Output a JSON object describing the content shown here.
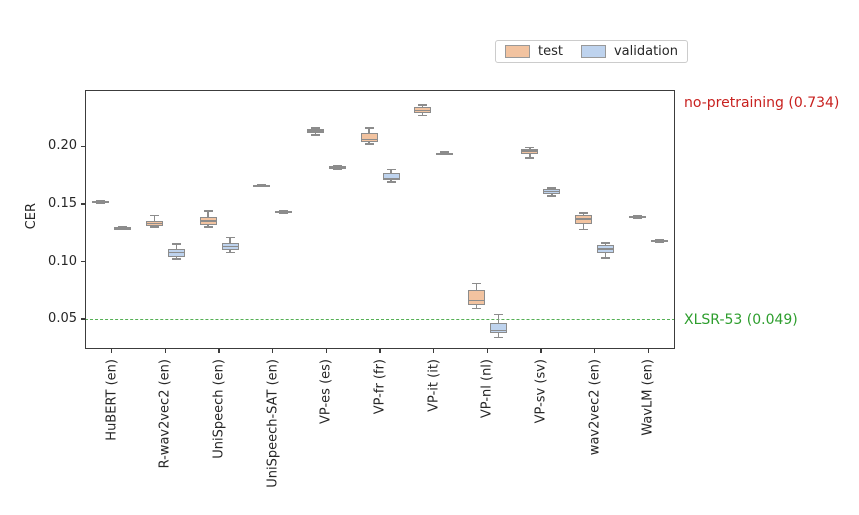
{
  "legend": {
    "items": [
      {
        "label": "test",
        "color": "#f2c3a0"
      },
      {
        "label": "validation",
        "color": "#bed3ee"
      }
    ]
  },
  "annotations": {
    "no_pretraining": {
      "text": "no-pretraining (0.734)",
      "value": 0.734,
      "color": "#c8211f"
    },
    "xlsr53": {
      "text": "XLSR-53 (0.049)",
      "value": 0.049,
      "color": "#2e9e2e"
    }
  },
  "chart_data": {
    "type": "boxplot",
    "title": "",
    "xlabel": "",
    "ylabel": "CER",
    "ylim": [
      0.024,
      0.249
    ],
    "yticks": [
      0.05,
      0.1,
      0.15,
      0.2
    ],
    "grid": false,
    "legend_position": "top-right-above-axes",
    "categories": [
      "HuBERT (en)",
      "R-wav2vec2 (en)",
      "UniSpeech (en)",
      "UniSpeech-SAT (en)",
      "VP-es (es)",
      "VP-fr (fr)",
      "VP-it (it)",
      "VP-nl (nl)",
      "VP-sv (sv)",
      "wav2vec2 (en)",
      "WavLM (en)"
    ],
    "series": [
      {
        "name": "test",
        "fill": "#f2c3a0",
        "edge": "#8c8c8c",
        "boxes": [
          {
            "whislo": 0.151,
            "q1": 0.1515,
            "med": 0.152,
            "q3": 0.1525,
            "whishi": 0.153
          },
          {
            "whislo": 0.13,
            "q1": 0.131,
            "med": 0.133,
            "q3": 0.135,
            "whishi": 0.14
          },
          {
            "whislo": 0.13,
            "q1": 0.132,
            "med": 0.135,
            "q3": 0.139,
            "whishi": 0.144
          },
          {
            "whislo": 0.165,
            "q1": 0.1655,
            "med": 0.166,
            "q3": 0.1665,
            "whishi": 0.167
          },
          {
            "whislo": 0.21,
            "q1": 0.212,
            "med": 0.2135,
            "q3": 0.215,
            "whishi": 0.216
          },
          {
            "whislo": 0.202,
            "q1": 0.204,
            "med": 0.206,
            "q3": 0.212,
            "whishi": 0.216
          },
          {
            "whislo": 0.227,
            "q1": 0.229,
            "med": 0.231,
            "q3": 0.234,
            "whishi": 0.236
          },
          {
            "whislo": 0.059,
            "q1": 0.062,
            "med": 0.066,
            "q3": 0.075,
            "whishi": 0.081
          },
          {
            "whislo": 0.19,
            "q1": 0.193,
            "med": 0.196,
            "q3": 0.198,
            "whishi": 0.199
          },
          {
            "whislo": 0.128,
            "q1": 0.133,
            "med": 0.137,
            "q3": 0.14,
            "whishi": 0.142
          },
          {
            "whislo": 0.138,
            "q1": 0.1385,
            "med": 0.139,
            "q3": 0.1395,
            "whishi": 0.14
          }
        ]
      },
      {
        "name": "validation",
        "fill": "#bed3ee",
        "edge": "#8c8c8c",
        "boxes": [
          {
            "whislo": 0.128,
            "q1": 0.1285,
            "med": 0.129,
            "q3": 0.1295,
            "whishi": 0.13
          },
          {
            "whislo": 0.102,
            "q1": 0.104,
            "med": 0.108,
            "q3": 0.111,
            "whishi": 0.115
          },
          {
            "whislo": 0.108,
            "q1": 0.11,
            "med": 0.113,
            "q3": 0.116,
            "whishi": 0.121
          },
          {
            "whislo": 0.142,
            "q1": 0.1425,
            "med": 0.143,
            "q3": 0.1435,
            "whishi": 0.144
          },
          {
            "whislo": 0.18,
            "q1": 0.1815,
            "med": 0.182,
            "q3": 0.1825,
            "whishi": 0.183
          },
          {
            "whislo": 0.169,
            "q1": 0.171,
            "med": 0.172,
            "q3": 0.177,
            "whishi": 0.18
          },
          {
            "whislo": 0.193,
            "q1": 0.1935,
            "med": 0.194,
            "q3": 0.1945,
            "whishi": 0.195
          },
          {
            "whislo": 0.034,
            "q1": 0.038,
            "med": 0.04,
            "q3": 0.047,
            "whishi": 0.054
          },
          {
            "whislo": 0.157,
            "q1": 0.159,
            "med": 0.161,
            "q3": 0.163,
            "whishi": 0.164
          },
          {
            "whislo": 0.103,
            "q1": 0.107,
            "med": 0.111,
            "q3": 0.114,
            "whishi": 0.116
          },
          {
            "whislo": 0.117,
            "q1": 0.1175,
            "med": 0.118,
            "q3": 0.1185,
            "whishi": 0.119
          }
        ]
      }
    ],
    "reference_lines": [
      {
        "label": "XLSR-53",
        "value": 0.049,
        "color": "#55b055",
        "style": "dashed"
      }
    ]
  }
}
